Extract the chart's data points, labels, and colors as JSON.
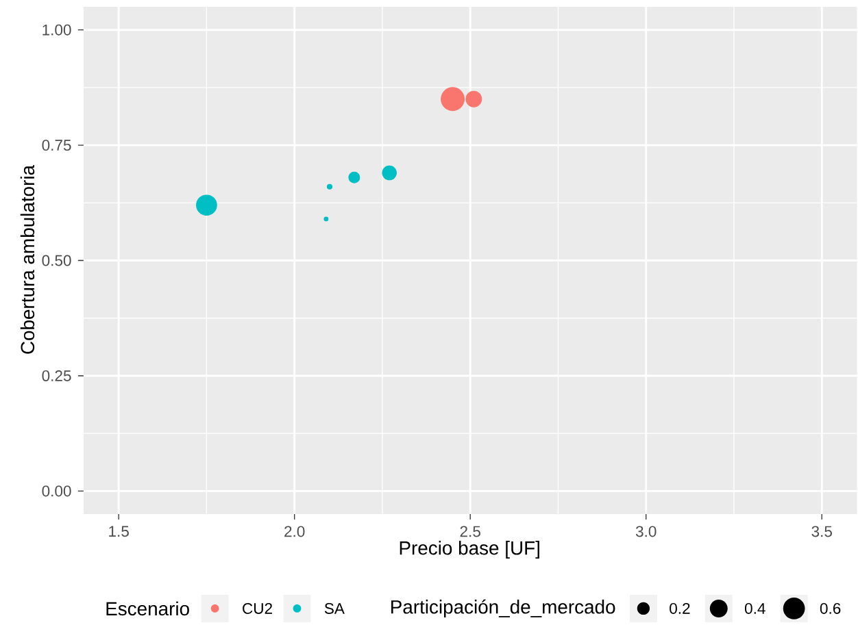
{
  "chart_data": {
    "type": "bubble",
    "xlabel": "Precio base [UF]",
    "ylabel": "Cobertura ambulatoria",
    "legend_title": "Escenario",
    "legend": "bottom",
    "grid": true,
    "xlim": [
      1.4,
      3.6
    ],
    "ylim": [
      -0.05,
      1.05
    ],
    "xticks": [
      1.5,
      {
        "value": 2,
        "label": "2.0"
      },
      2.5,
      {
        "value": 3,
        "label": "3.0"
      },
      3.5
    ],
    "yticks": [
      {
        "value": 0,
        "label": "0.00"
      },
      {
        "value": 0.25,
        "label": "0.25"
      },
      {
        "value": 0.5,
        "label": "0.50"
      },
      {
        "value": 0.75,
        "label": "0.75"
      },
      {
        "value": 1,
        "label": "1.00"
      }
    ],
    "size_legend": [
      0.2,
      0.4,
      0.6
    ],
    "annotations": [
      "Participación_de_mercado"
    ],
    "series": [
      {
        "name": "CU2",
        "color": "#F8766D",
        "x": [
          2.45,
          2.51
        ],
        "values": [
          0.85,
          0.85
        ],
        "sizes": [
          0.68,
          0.31
        ]
      },
      {
        "name": "SA",
        "color": "#00BFC4",
        "x": [
          1.75,
          2.1,
          2.17,
          2.27,
          2.09
        ],
        "values": [
          0.62,
          0.66,
          0.68,
          0.69,
          0.59
        ],
        "sizes": [
          0.52,
          0.03,
          0.15,
          0.25,
          0.02
        ]
      }
    ]
  }
}
